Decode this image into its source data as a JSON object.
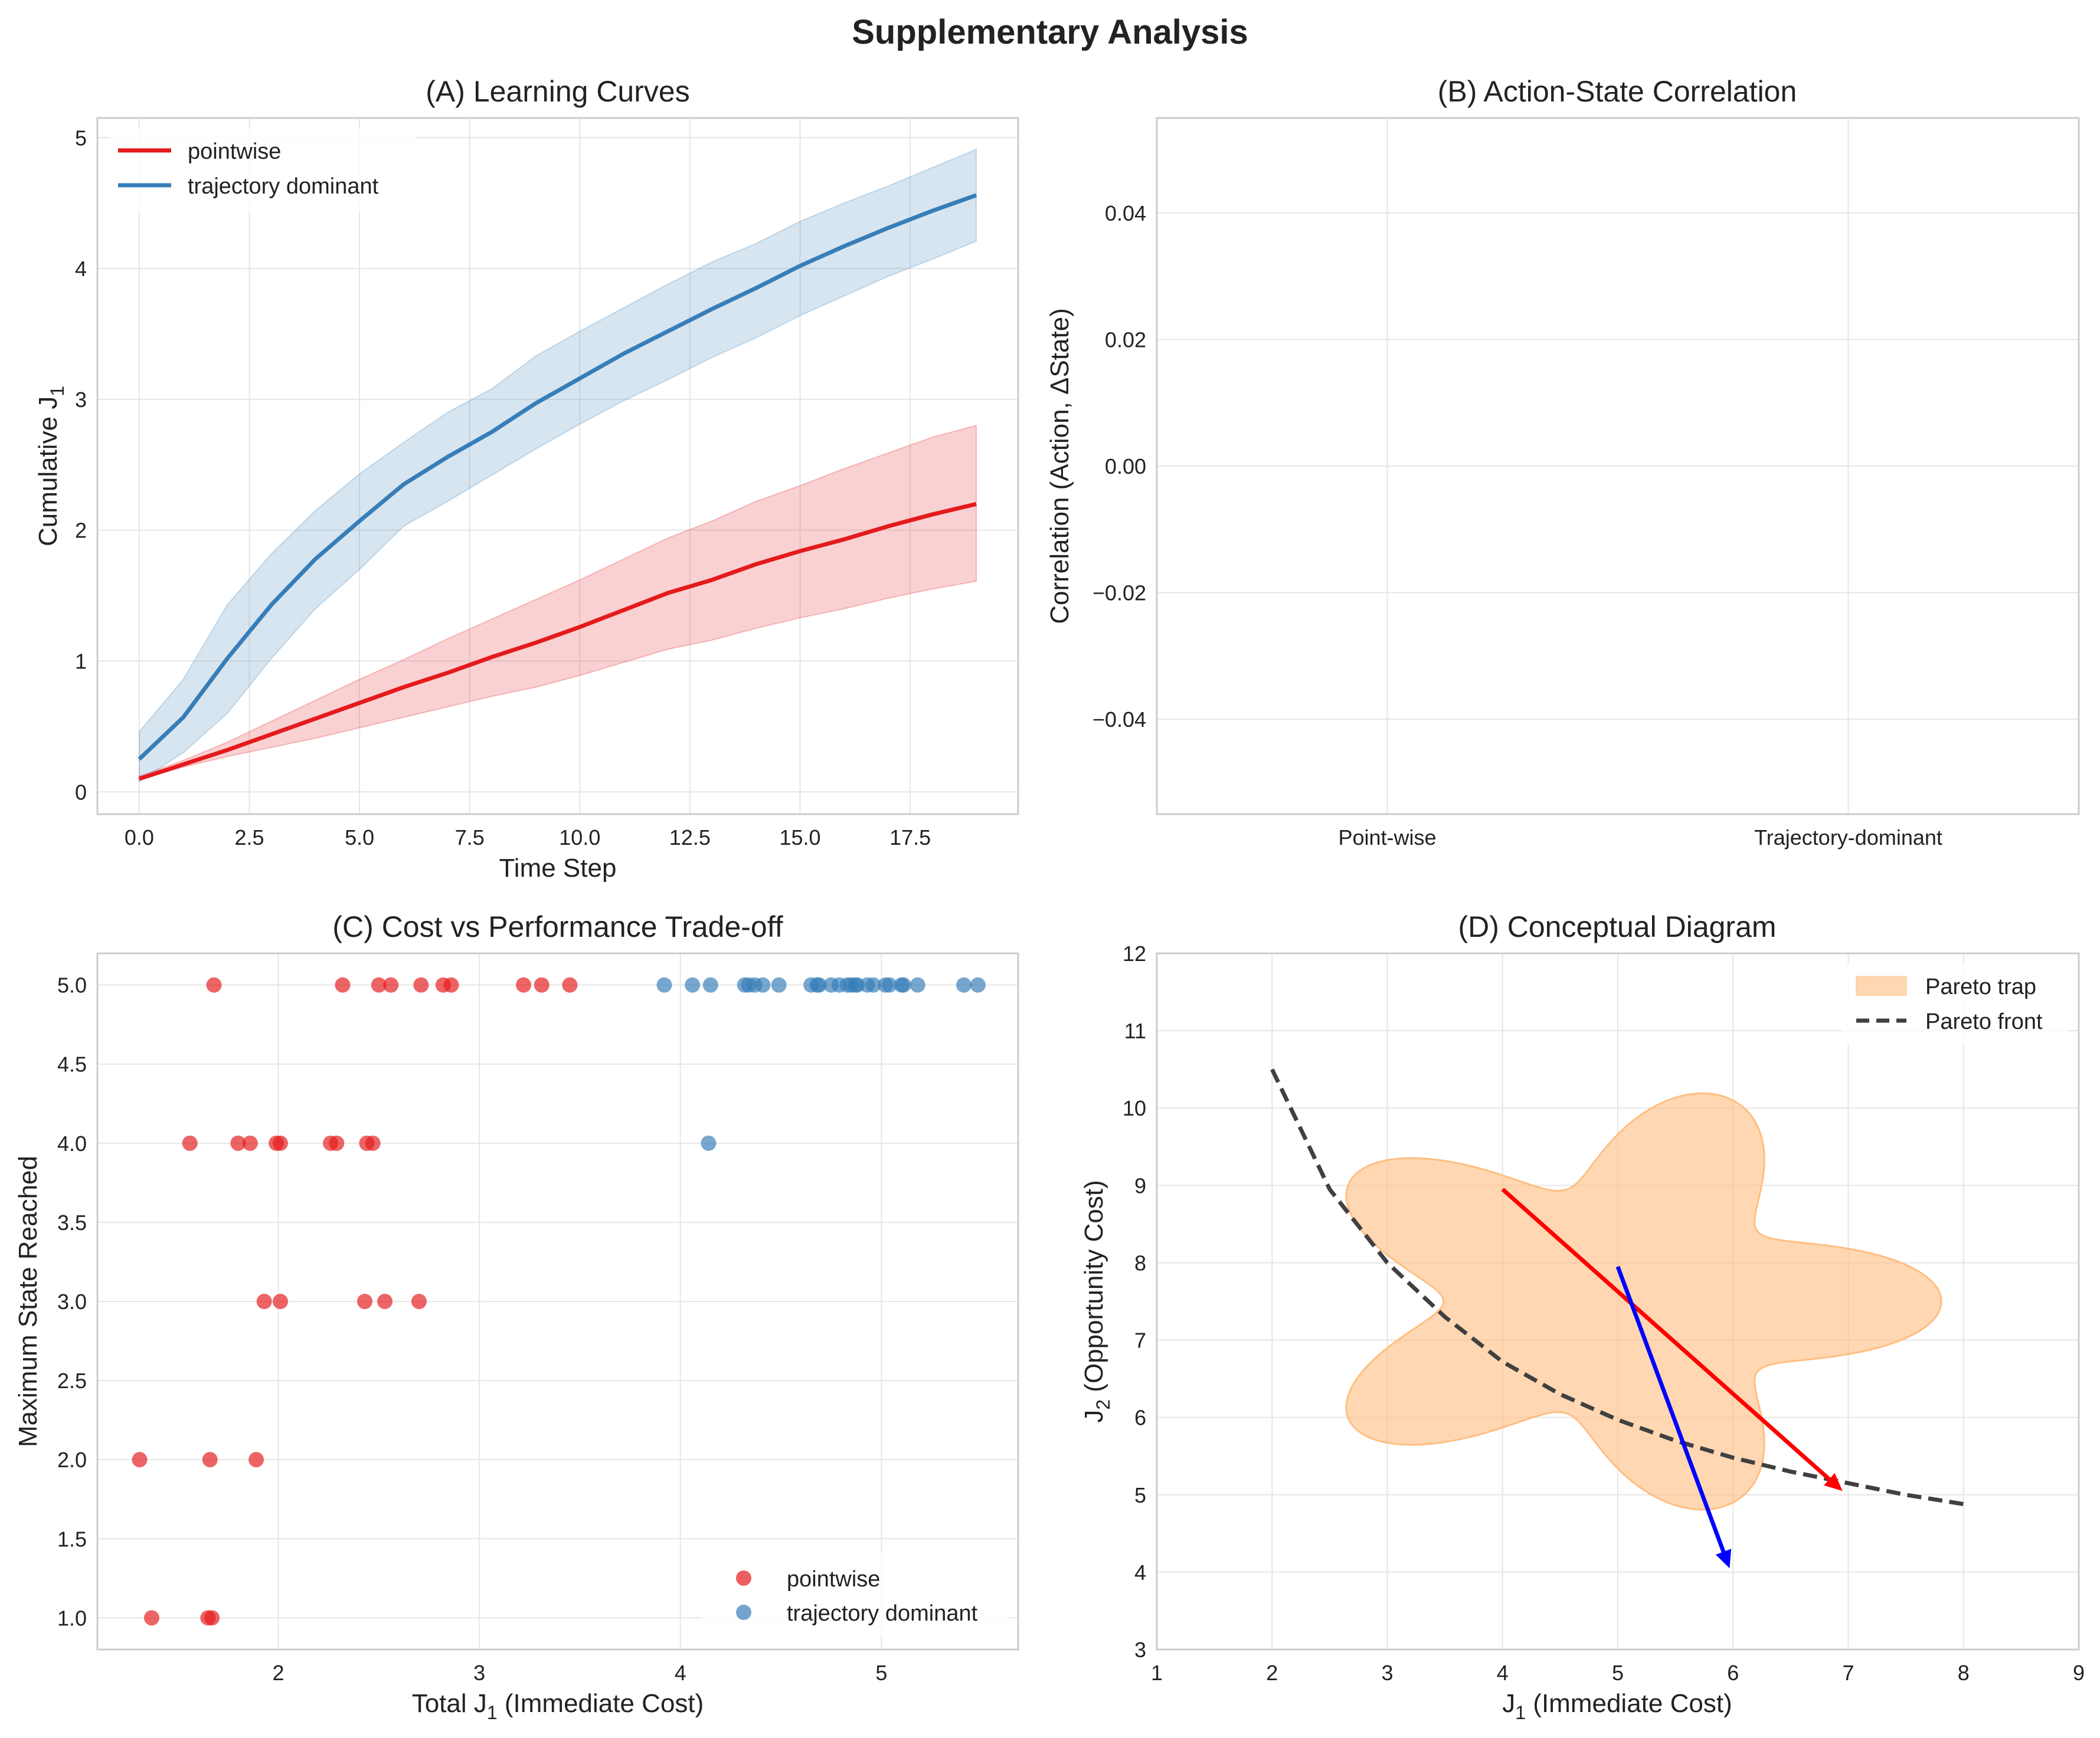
{
  "figure_title": "Supplementary Analysis",
  "colors": {
    "pointwise": "#e41a1c",
    "trajectory": "#377eb8",
    "band_pointwise": "#f4a5a6",
    "band_trajectory": "#a9c6e2",
    "pareto_trap": "#ffbe80",
    "pareto_front": "#404040",
    "arrow_red": "#ff0000",
    "arrow_blue": "#0000ff",
    "grid": "#e6e6e6",
    "spine": "#cccccc"
  },
  "chart_data": [
    {
      "id": "A",
      "type": "line",
      "title": "(A) Learning Curves",
      "xlabel": "Time Step",
      "ylabel": "Cumulative J",
      "ylabel_sub": "1",
      "xlim": [
        -0.95,
        19.95
      ],
      "ylim": [
        -0.17,
        5.15
      ],
      "xticks": [
        0.0,
        2.5,
        5.0,
        7.5,
        10.0,
        12.5,
        15.0,
        17.5
      ],
      "xtick_labels": [
        "0.0",
        "2.5",
        "5.0",
        "7.5",
        "10.0",
        "12.5",
        "15.0",
        "17.5"
      ],
      "yticks": [
        0,
        1,
        2,
        3,
        4,
        5
      ],
      "ytick_labels": [
        "0",
        "1",
        "2",
        "3",
        "4",
        "5"
      ],
      "grid": true,
      "legend": "upper-left",
      "x": [
        0,
        1,
        2,
        3,
        4,
        5,
        6,
        7,
        8,
        9,
        10,
        11,
        12,
        13,
        14,
        15,
        16,
        17,
        18,
        19
      ],
      "series": [
        {
          "name": "pointwise",
          "color_key": "pointwise",
          "mean": [
            0.1,
            0.21,
            0.32,
            0.44,
            0.56,
            0.68,
            0.8,
            0.91,
            1.03,
            1.14,
            1.26,
            1.39,
            1.52,
            1.62,
            1.74,
            1.84,
            1.93,
            2.03,
            2.12,
            2.2
          ],
          "lower": [
            0.09,
            0.19,
            0.27,
            0.34,
            0.41,
            0.49,
            0.57,
            0.65,
            0.73,
            0.8,
            0.89,
            0.99,
            1.09,
            1.16,
            1.25,
            1.33,
            1.4,
            1.48,
            1.55,
            1.61
          ],
          "upper": [
            0.12,
            0.24,
            0.38,
            0.54,
            0.7,
            0.86,
            1.01,
            1.17,
            1.32,
            1.47,
            1.62,
            1.78,
            1.94,
            2.07,
            2.22,
            2.34,
            2.47,
            2.59,
            2.71,
            2.8
          ]
        },
        {
          "name": "trajectory dominant",
          "color_key": "trajectory",
          "mean": [
            0.25,
            0.57,
            1.02,
            1.43,
            1.78,
            2.07,
            2.35,
            2.56,
            2.75,
            2.97,
            3.16,
            3.35,
            3.52,
            3.69,
            3.85,
            4.02,
            4.17,
            4.31,
            4.44,
            4.56
          ],
          "lower": [
            0.08,
            0.3,
            0.6,
            1.02,
            1.4,
            1.7,
            2.03,
            2.22,
            2.42,
            2.62,
            2.81,
            2.99,
            3.15,
            3.32,
            3.47,
            3.64,
            3.79,
            3.94,
            4.07,
            4.21
          ],
          "upper": [
            0.46,
            0.86,
            1.43,
            1.82,
            2.15,
            2.43,
            2.67,
            2.9,
            3.08,
            3.33,
            3.52,
            3.7,
            3.88,
            4.05,
            4.19,
            4.36,
            4.5,
            4.63,
            4.77,
            4.91
          ]
        }
      ]
    },
    {
      "id": "B",
      "type": "bar",
      "title": "(B) Action-State Correlation",
      "ylabel": "Correlation (Action, ΔState)",
      "categories": [
        "Point-wise",
        "Trajectory-dominant"
      ],
      "values": [
        null,
        null
      ],
      "ylim": [
        -0.055,
        0.055
      ],
      "yticks": [
        -0.04,
        -0.02,
        0.0,
        0.02,
        0.04
      ],
      "ytick_labels": [
        "−0.04",
        "−0.02",
        "0.00",
        "0.02",
        "0.04"
      ],
      "grid": true
    },
    {
      "id": "C",
      "type": "scatter",
      "title": "(C) Cost vs Performance Trade-off",
      "xlabel": "Total J",
      "xlabel_sub": "1",
      "xlabel_suffix": " (Immediate Cost)",
      "ylabel": "Maximum State Reached",
      "xlim": [
        1.1,
        5.68
      ],
      "ylim": [
        0.8,
        5.2
      ],
      "xticks": [
        2,
        3,
        4,
        5
      ],
      "xtick_labels": [
        "2",
        "3",
        "4",
        "5"
      ],
      "yticks": [
        1.0,
        1.5,
        2.0,
        2.5,
        3.0,
        3.5,
        4.0,
        4.5,
        5.0
      ],
      "ytick_labels": [
        "1.0",
        "1.5",
        "2.0",
        "2.5",
        "3.0",
        "3.5",
        "4.0",
        "4.5",
        "5.0"
      ],
      "grid": true,
      "legend": "lower-right",
      "series": [
        {
          "name": "pointwise",
          "color_key": "pointwise",
          "x": [
            1.68,
            2.32,
            2.5,
            2.56,
            2.71,
            2.82,
            2.86,
            3.22,
            3.31,
            3.45,
            1.56,
            1.8,
            1.86,
            1.99,
            2.01,
            2.26,
            2.29,
            2.44,
            2.47,
            1.93,
            2.01,
            2.43,
            2.53,
            2.7,
            1.31,
            1.66,
            1.89,
            1.37,
            1.65,
            1.67
          ],
          "y": [
            5,
            5,
            5,
            5,
            5,
            5,
            5,
            5,
            5,
            5,
            4,
            4,
            4,
            4,
            4,
            4,
            4,
            4,
            4,
            3,
            3,
            3,
            3,
            3,
            2,
            2,
            2,
            1,
            1,
            1
          ]
        },
        {
          "name": "trajectory dominant",
          "color_key": "trajectory",
          "x": [
            3.92,
            4.06,
            4.15,
            4.32,
            4.34,
            4.37,
            4.41,
            4.49,
            4.65,
            4.68,
            4.69,
            4.75,
            4.79,
            4.83,
            4.85,
            4.87,
            4.88,
            4.93,
            4.96,
            5.02,
            5.04,
            5.1,
            5.11,
            5.18,
            5.41,
            5.48,
            4.14
          ],
          "y": [
            5,
            5,
            5,
            5,
            5,
            5,
            5,
            5,
            5,
            5,
            5,
            5,
            5,
            5,
            5,
            5,
            5,
            5,
            5,
            5,
            5,
            5,
            5,
            5,
            5,
            5,
            4
          ]
        }
      ]
    },
    {
      "id": "D",
      "type": "line",
      "title": "(D) Conceptual Diagram",
      "xlabel": "J",
      "xlabel_sub": "1",
      "xlabel_suffix": " (Immediate Cost)",
      "ylabel": "J",
      "ylabel_sub": "2",
      "ylabel_suffix": " (Opportunity Cost)",
      "xlim": [
        1,
        9
      ],
      "ylim": [
        3,
        12
      ],
      "xticks": [
        1,
        2,
        3,
        4,
        5,
        6,
        7,
        8,
        9
      ],
      "xtick_labels": [
        "1",
        "2",
        "3",
        "4",
        "5",
        "6",
        "7",
        "8",
        "9"
      ],
      "yticks": [
        3,
        4,
        5,
        6,
        7,
        8,
        9,
        10,
        11,
        12
      ],
      "ytick_labels": [
        "3",
        "4",
        "5",
        "6",
        "7",
        "8",
        "9",
        "10",
        "11",
        "12"
      ],
      "grid": true,
      "legend": "upper-right",
      "series": [
        {
          "name": "Pareto trap",
          "kind": "filled_region",
          "color_key": "pareto_trap",
          "center": [
            5,
            7.5
          ],
          "base_radius": 3.0,
          "lobes": 5,
          "lobe_amplitude": 0.3,
          "rotation_deg": 90
        },
        {
          "name": "Pareto front",
          "kind": "curve",
          "color_key": "pareto_front",
          "x": [
            2.0,
            2.5,
            3.0,
            3.5,
            4.0,
            4.5,
            5.0,
            5.5,
            6.0,
            6.5,
            7.0,
            7.5,
            8.0
          ],
          "y": [
            10.5,
            8.95,
            8.0,
            7.3,
            6.72,
            6.3,
            5.97,
            5.7,
            5.48,
            5.3,
            5.15,
            5.0,
            4.88
          ]
        }
      ],
      "arrows": [
        {
          "color_key": "arrow_red",
          "from": [
            4.0,
            8.95
          ],
          "to": [
            6.95,
            5.05
          ]
        },
        {
          "color_key": "arrow_blue",
          "from": [
            5.0,
            7.95
          ],
          "to": [
            5.97,
            4.05
          ]
        }
      ]
    }
  ]
}
